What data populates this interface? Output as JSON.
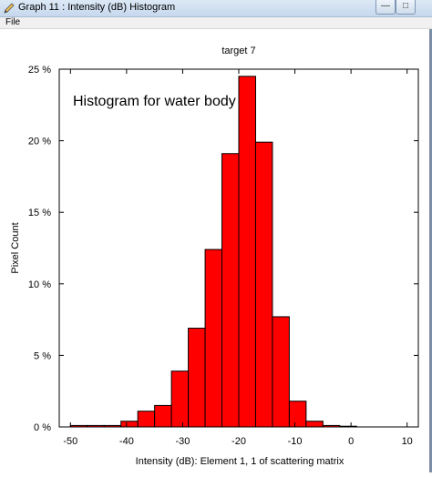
{
  "window": {
    "title": "Graph 11 : Intensity (dB) Histogram",
    "minimize_glyph": "—",
    "maximize_glyph": "□"
  },
  "menu": {
    "file": "File"
  },
  "icons": {
    "app": "pencil-graph-icon"
  },
  "chart_data": {
    "type": "bar",
    "title": "target 7",
    "annotation": "Histogram for water body",
    "xlabel": "Intensity (dB): Element 1, 1 of scattering matrix",
    "ylabel": "Pixel Count",
    "xlim": [
      -52,
      12
    ],
    "ylim": [
      0,
      25
    ],
    "xticks": [
      -50,
      -40,
      -30,
      -20,
      -10,
      0,
      10
    ],
    "xtick_labels": [
      "-50",
      "-40",
      "-30",
      "-20",
      "-10",
      "0",
      "10"
    ],
    "yticks": [
      0,
      5,
      10,
      15,
      20,
      25
    ],
    "ytick_labels": [
      "0 %",
      "5 %",
      "10 %",
      "15 %",
      "20 %",
      "25 %"
    ],
    "bin_edges": [
      -50,
      -47,
      -44,
      -41,
      -38,
      -35,
      -32,
      -29,
      -26,
      -23,
      -20,
      -17,
      -14,
      -11,
      -8,
      -5,
      -2,
      1
    ],
    "values": [
      0.1,
      0.1,
      0.1,
      0.4,
      1.1,
      1.5,
      3.9,
      6.9,
      12.4,
      19.1,
      24.5,
      19.9,
      7.7,
      1.8,
      0.4,
      0.1,
      0.05
    ],
    "bar_color": "#ff0000",
    "grid": false
  }
}
